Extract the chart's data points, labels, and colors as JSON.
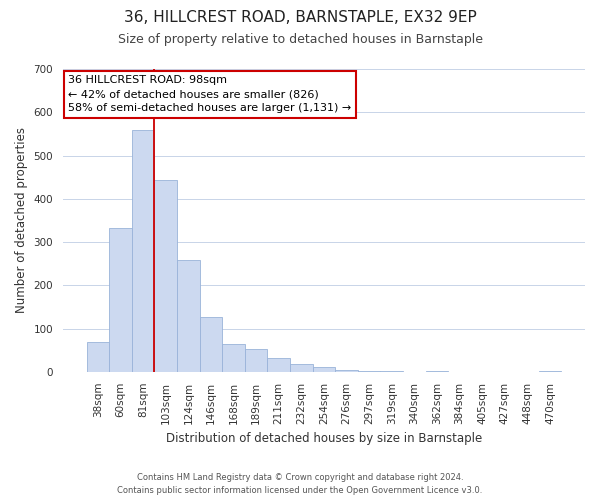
{
  "title": "36, HILLCREST ROAD, BARNSTAPLE, EX32 9EP",
  "subtitle": "Size of property relative to detached houses in Barnstaple",
  "xlabel": "Distribution of detached houses by size in Barnstaple",
  "ylabel": "Number of detached properties",
  "bar_labels": [
    "38sqm",
    "60sqm",
    "81sqm",
    "103sqm",
    "124sqm",
    "146sqm",
    "168sqm",
    "189sqm",
    "211sqm",
    "232sqm",
    "254sqm",
    "276sqm",
    "297sqm",
    "319sqm",
    "340sqm",
    "362sqm",
    "384sqm",
    "405sqm",
    "427sqm",
    "448sqm",
    "470sqm"
  ],
  "bar_values": [
    70,
    333,
    560,
    443,
    258,
    127,
    65,
    52,
    32,
    17,
    12,
    5,
    2,
    1,
    0,
    1,
    0,
    0,
    0,
    0,
    3
  ],
  "bar_color": "#ccd9f0",
  "bar_edge_color": "#99b3d9",
  "vline_color": "#cc0000",
  "annotation_text": "36 HILLCREST ROAD: 98sqm\n← 42% of detached houses are smaller (826)\n58% of semi-detached houses are larger (1,131) →",
  "annotation_box_edge": "#cc0000",
  "ylim": [
    0,
    700
  ],
  "yticks": [
    0,
    100,
    200,
    300,
    400,
    500,
    600,
    700
  ],
  "footer_line1": "Contains HM Land Registry data © Crown copyright and database right 2024.",
  "footer_line2": "Contains public sector information licensed under the Open Government Licence v3.0.",
  "bg_color": "#ffffff",
  "grid_color": "#c8d4e8",
  "title_fontsize": 11,
  "subtitle_fontsize": 9,
  "axis_label_fontsize": 8.5,
  "tick_fontsize": 7.5,
  "annotation_fontsize": 8
}
